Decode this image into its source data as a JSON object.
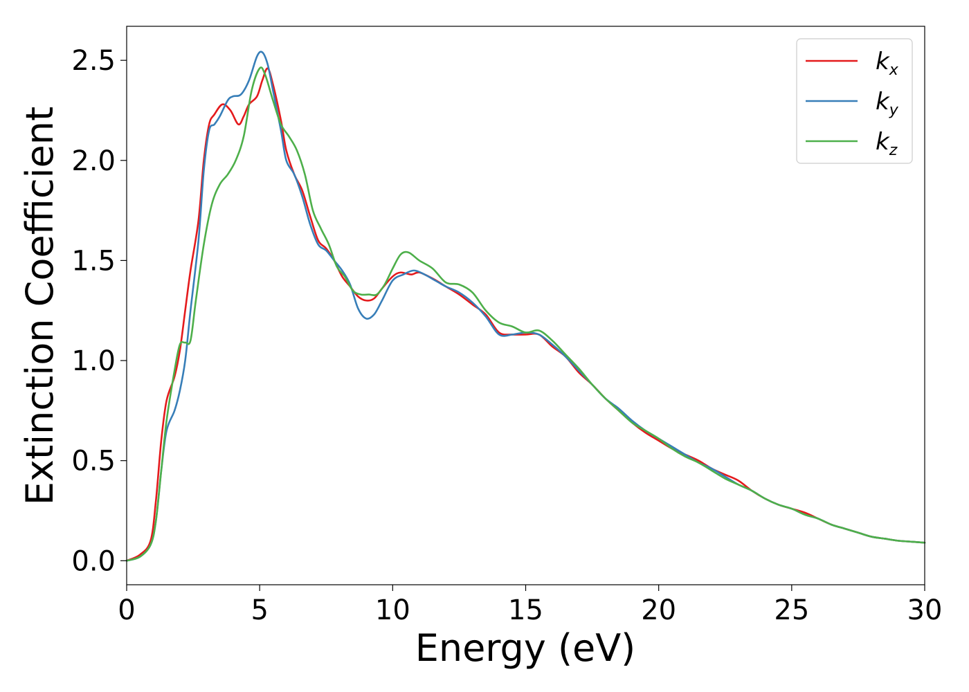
{
  "chart_data": {
    "type": "line",
    "xlabel": "Energy (eV)",
    "ylabel": "Extinction Coefficient",
    "xlim": [
      0,
      30
    ],
    "ylim": [
      -0.12,
      2.67
    ],
    "xticks": [
      "0",
      "5",
      "10",
      "15",
      "20",
      "25",
      "30"
    ],
    "yticks": [
      "0.0",
      "0.5",
      "1.0",
      "1.5",
      "2.0",
      "2.5"
    ],
    "grid": false,
    "legend_position": "top-right",
    "series": [
      {
        "name": "k",
        "subscript": "x",
        "color": "#e41a1c",
        "points": [
          [
            0,
            0
          ],
          [
            0.5,
            0.03
          ],
          [
            0.9,
            0.1
          ],
          [
            1.1,
            0.3
          ],
          [
            1.3,
            0.6
          ],
          [
            1.5,
            0.8
          ],
          [
            1.8,
            0.92
          ],
          [
            2.0,
            1.05
          ],
          [
            2.2,
            1.25
          ],
          [
            2.4,
            1.45
          ],
          [
            2.7,
            1.7
          ],
          [
            2.9,
            2.0
          ],
          [
            3.1,
            2.18
          ],
          [
            3.3,
            2.23
          ],
          [
            3.6,
            2.28
          ],
          [
            3.9,
            2.25
          ],
          [
            4.2,
            2.18
          ],
          [
            4.4,
            2.22
          ],
          [
            4.6,
            2.28
          ],
          [
            4.9,
            2.32
          ],
          [
            5.1,
            2.4
          ],
          [
            5.3,
            2.46
          ],
          [
            5.5,
            2.38
          ],
          [
            5.8,
            2.2
          ],
          [
            6.0,
            2.05
          ],
          [
            6.3,
            1.93
          ],
          [
            6.6,
            1.85
          ],
          [
            6.9,
            1.72
          ],
          [
            7.2,
            1.6
          ],
          [
            7.5,
            1.56
          ],
          [
            7.8,
            1.5
          ],
          [
            8.1,
            1.42
          ],
          [
            8.4,
            1.37
          ],
          [
            8.7,
            1.32
          ],
          [
            9.0,
            1.3
          ],
          [
            9.3,
            1.31
          ],
          [
            9.6,
            1.36
          ],
          [
            10.0,
            1.42
          ],
          [
            10.3,
            1.44
          ],
          [
            10.7,
            1.43
          ],
          [
            11.0,
            1.44
          ],
          [
            11.5,
            1.41
          ],
          [
            12.0,
            1.37
          ],
          [
            12.5,
            1.33
          ],
          [
            13.0,
            1.28
          ],
          [
            13.5,
            1.23
          ],
          [
            14.0,
            1.14
          ],
          [
            14.5,
            1.13
          ],
          [
            15.0,
            1.13
          ],
          [
            15.5,
            1.13
          ],
          [
            16.0,
            1.07
          ],
          [
            16.5,
            1.02
          ],
          [
            17.0,
            0.94
          ],
          [
            17.5,
            0.88
          ],
          [
            18.0,
            0.81
          ],
          [
            18.5,
            0.75
          ],
          [
            19.0,
            0.69
          ],
          [
            19.5,
            0.64
          ],
          [
            20.0,
            0.6
          ],
          [
            20.5,
            0.56
          ],
          [
            21.0,
            0.53
          ],
          [
            21.5,
            0.5
          ],
          [
            22.0,
            0.46
          ],
          [
            22.5,
            0.43
          ],
          [
            23.0,
            0.4
          ],
          [
            23.5,
            0.35
          ],
          [
            24.0,
            0.31
          ],
          [
            24.5,
            0.28
          ],
          [
            25.0,
            0.26
          ],
          [
            25.5,
            0.24
          ],
          [
            26.0,
            0.21
          ],
          [
            26.5,
            0.18
          ],
          [
            27.0,
            0.16
          ],
          [
            27.5,
            0.14
          ],
          [
            28.0,
            0.12
          ],
          [
            28.5,
            0.11
          ],
          [
            29.0,
            0.1
          ],
          [
            29.5,
            0.095
          ],
          [
            30.0,
            0.09
          ]
        ]
      },
      {
        "name": "k",
        "subscript": "y",
        "color": "#377eb8",
        "points": [
          [
            0,
            0
          ],
          [
            0.5,
            0.02
          ],
          [
            0.9,
            0.08
          ],
          [
            1.1,
            0.2
          ],
          [
            1.3,
            0.45
          ],
          [
            1.5,
            0.65
          ],
          [
            1.8,
            0.75
          ],
          [
            2.0,
            0.85
          ],
          [
            2.2,
            1.0
          ],
          [
            2.4,
            1.25
          ],
          [
            2.7,
            1.6
          ],
          [
            2.9,
            1.95
          ],
          [
            3.1,
            2.15
          ],
          [
            3.3,
            2.18
          ],
          [
            3.5,
            2.22
          ],
          [
            3.8,
            2.3
          ],
          [
            4.0,
            2.32
          ],
          [
            4.3,
            2.33
          ],
          [
            4.6,
            2.4
          ],
          [
            4.9,
            2.52
          ],
          [
            5.1,
            2.54
          ],
          [
            5.3,
            2.48
          ],
          [
            5.5,
            2.35
          ],
          [
            5.8,
            2.15
          ],
          [
            6.0,
            2.0
          ],
          [
            6.3,
            1.93
          ],
          [
            6.6,
            1.82
          ],
          [
            6.9,
            1.68
          ],
          [
            7.2,
            1.58
          ],
          [
            7.5,
            1.55
          ],
          [
            7.8,
            1.5
          ],
          [
            8.1,
            1.45
          ],
          [
            8.4,
            1.38
          ],
          [
            8.7,
            1.26
          ],
          [
            9.0,
            1.21
          ],
          [
            9.3,
            1.23
          ],
          [
            9.6,
            1.3
          ],
          [
            10.0,
            1.4
          ],
          [
            10.4,
            1.43
          ],
          [
            10.8,
            1.45
          ],
          [
            11.2,
            1.43
          ],
          [
            11.6,
            1.4
          ],
          [
            12.0,
            1.37
          ],
          [
            12.5,
            1.34
          ],
          [
            13.0,
            1.29
          ],
          [
            13.5,
            1.22
          ],
          [
            14.0,
            1.13
          ],
          [
            14.5,
            1.13
          ],
          [
            15.0,
            1.14
          ],
          [
            15.5,
            1.13
          ],
          [
            16.0,
            1.08
          ],
          [
            16.5,
            1.02
          ],
          [
            17.0,
            0.95
          ],
          [
            17.5,
            0.88
          ],
          [
            18.0,
            0.81
          ],
          [
            18.5,
            0.76
          ],
          [
            19.0,
            0.7
          ],
          [
            19.5,
            0.65
          ],
          [
            20.0,
            0.61
          ],
          [
            20.5,
            0.57
          ],
          [
            21.0,
            0.53
          ],
          [
            21.5,
            0.49
          ],
          [
            22.0,
            0.46
          ],
          [
            22.5,
            0.42
          ],
          [
            23.0,
            0.38
          ],
          [
            23.5,
            0.35
          ],
          [
            24.0,
            0.31
          ],
          [
            24.5,
            0.28
          ],
          [
            25.0,
            0.26
          ],
          [
            25.5,
            0.23
          ],
          [
            26.0,
            0.21
          ],
          [
            26.5,
            0.18
          ],
          [
            27.0,
            0.16
          ],
          [
            27.5,
            0.14
          ],
          [
            28.0,
            0.12
          ],
          [
            28.5,
            0.11
          ],
          [
            29.0,
            0.1
          ],
          [
            29.5,
            0.095
          ],
          [
            30.0,
            0.09
          ]
        ]
      },
      {
        "name": "k",
        "subscript": "z",
        "color": "#4daf4a",
        "points": [
          [
            0,
            0
          ],
          [
            0.5,
            0.02
          ],
          [
            0.9,
            0.08
          ],
          [
            1.1,
            0.2
          ],
          [
            1.3,
            0.45
          ],
          [
            1.5,
            0.7
          ],
          [
            1.8,
            0.95
          ],
          [
            2.0,
            1.08
          ],
          [
            2.2,
            1.09
          ],
          [
            2.4,
            1.1
          ],
          [
            2.6,
            1.3
          ],
          [
            2.9,
            1.58
          ],
          [
            3.2,
            1.78
          ],
          [
            3.5,
            1.88
          ],
          [
            3.8,
            1.93
          ],
          [
            4.1,
            2.0
          ],
          [
            4.4,
            2.12
          ],
          [
            4.7,
            2.35
          ],
          [
            5.0,
            2.46
          ],
          [
            5.2,
            2.43
          ],
          [
            5.5,
            2.3
          ],
          [
            5.8,
            2.18
          ],
          [
            6.1,
            2.12
          ],
          [
            6.4,
            2.05
          ],
          [
            6.7,
            1.93
          ],
          [
            7.0,
            1.75
          ],
          [
            7.3,
            1.66
          ],
          [
            7.6,
            1.58
          ],
          [
            7.9,
            1.47
          ],
          [
            8.2,
            1.42
          ],
          [
            8.5,
            1.35
          ],
          [
            8.8,
            1.33
          ],
          [
            9.1,
            1.33
          ],
          [
            9.4,
            1.33
          ],
          [
            9.7,
            1.38
          ],
          [
            10.0,
            1.46
          ],
          [
            10.3,
            1.53
          ],
          [
            10.6,
            1.54
          ],
          [
            11.0,
            1.5
          ],
          [
            11.5,
            1.46
          ],
          [
            12.0,
            1.39
          ],
          [
            12.5,
            1.38
          ],
          [
            13.0,
            1.34
          ],
          [
            13.5,
            1.25
          ],
          [
            14.0,
            1.19
          ],
          [
            14.5,
            1.17
          ],
          [
            15.0,
            1.14
          ],
          [
            15.5,
            1.15
          ],
          [
            16.0,
            1.1
          ],
          [
            16.5,
            1.03
          ],
          [
            17.0,
            0.96
          ],
          [
            17.5,
            0.88
          ],
          [
            18.0,
            0.81
          ],
          [
            18.5,
            0.75
          ],
          [
            19.0,
            0.69
          ],
          [
            19.5,
            0.65
          ],
          [
            20.0,
            0.61
          ],
          [
            20.5,
            0.56
          ],
          [
            21.0,
            0.52
          ],
          [
            21.5,
            0.49
          ],
          [
            22.0,
            0.45
          ],
          [
            22.5,
            0.41
          ],
          [
            23.0,
            0.38
          ],
          [
            23.5,
            0.35
          ],
          [
            24.0,
            0.31
          ],
          [
            24.5,
            0.28
          ],
          [
            25.0,
            0.26
          ],
          [
            25.5,
            0.23
          ],
          [
            26.0,
            0.21
          ],
          [
            26.5,
            0.18
          ],
          [
            27.0,
            0.16
          ],
          [
            27.5,
            0.14
          ],
          [
            28.0,
            0.12
          ],
          [
            28.5,
            0.11
          ],
          [
            29.0,
            0.1
          ],
          [
            29.5,
            0.095
          ],
          [
            30.0,
            0.09
          ]
        ]
      }
    ]
  }
}
